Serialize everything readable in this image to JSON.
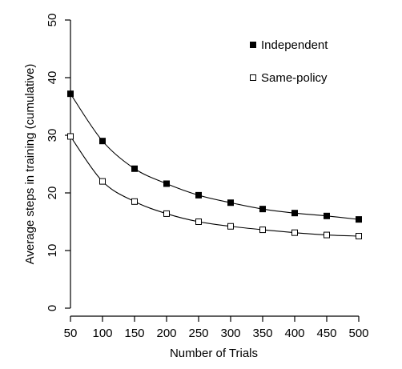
{
  "chart_data": {
    "type": "line",
    "xlabel": "Number of Trials",
    "ylabel": "Average steps in training (cumulative)",
    "x": [
      50,
      100,
      150,
      200,
      250,
      300,
      350,
      400,
      450,
      500
    ],
    "xticks": [
      "50",
      "100",
      "150",
      "200",
      "250",
      "300",
      "350",
      "400",
      "450",
      "500"
    ],
    "ylim": [
      0,
      50
    ],
    "yticks": [
      "0",
      "10",
      "20",
      "30",
      "40",
      "50"
    ],
    "grid": false,
    "legend_position": "top-right",
    "series": [
      {
        "name": "Independent",
        "marker": "filled-square",
        "values": [
          37.2,
          29.0,
          24.2,
          21.6,
          19.6,
          18.3,
          17.2,
          16.5,
          16.0,
          15.4
        ]
      },
      {
        "name": "Same-policy",
        "marker": "open-square",
        "values": [
          29.8,
          22.0,
          18.5,
          16.4,
          15.0,
          14.2,
          13.6,
          13.1,
          12.7,
          12.5
        ]
      }
    ]
  }
}
